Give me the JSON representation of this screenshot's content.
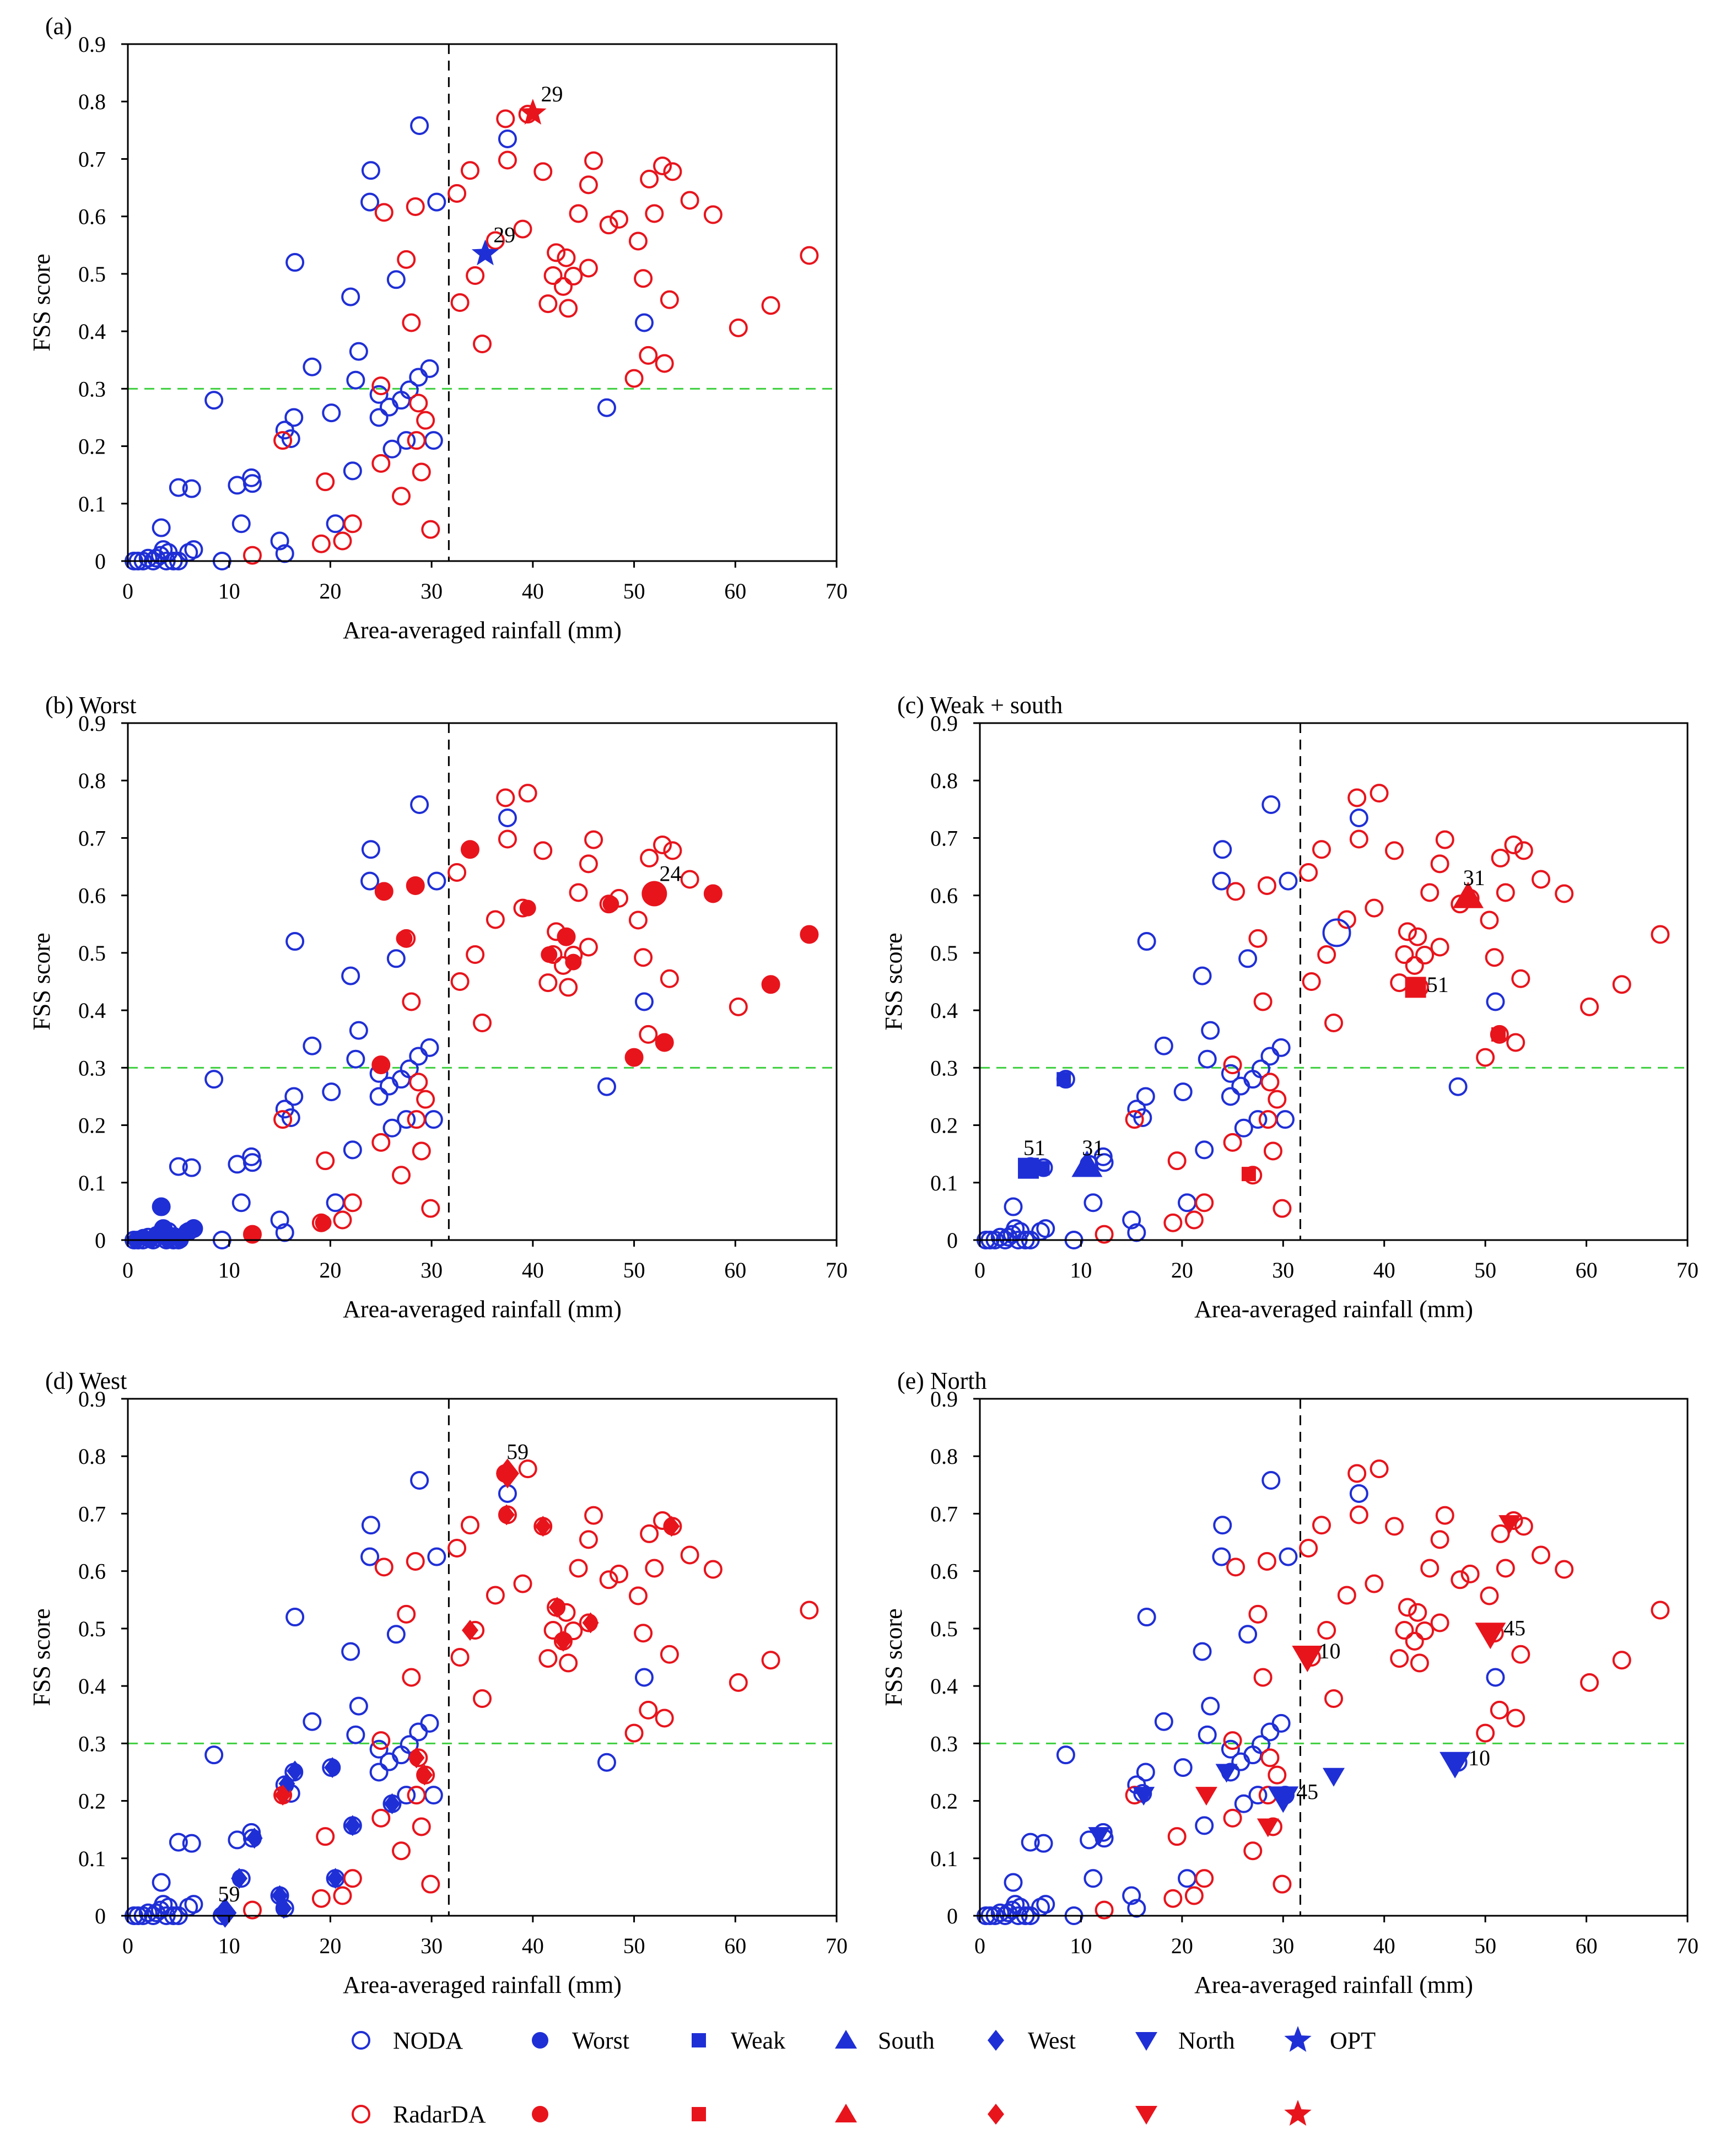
{
  "colors": {
    "noda": "#1f2fd6",
    "radar": "#e8141c",
    "threshold_line": "#3ecf3e",
    "split_line": "#000000"
  },
  "shared_axes": {
    "xlabel": "Area-averaged rainfall (mm)",
    "ylabel": "FSS score",
    "xlim": [
      0,
      70
    ],
    "ylim": [
      0,
      0.9
    ],
    "xticks": [
      "0",
      "10",
      "20",
      "30",
      "40",
      "50",
      "60",
      "70"
    ],
    "yticks": [
      "0",
      "0.1",
      "0.2",
      "0.3",
      "0.4",
      "0.5",
      "0.6",
      "0.7",
      "0.8",
      "0.9"
    ],
    "vertical_line_x": 31.7,
    "horizontal_line_y": 0.3
  },
  "base_points": {
    "noda": [
      [
        0.6,
        0.0
      ],
      [
        1.0,
        0.0
      ],
      [
        1.5,
        0.0
      ],
      [
        2.0,
        0.005
      ],
      [
        2.5,
        0.0
      ],
      [
        2.8,
        0.005
      ],
      [
        3.2,
        0.01
      ],
      [
        3.5,
        0.02
      ],
      [
        3.8,
        0.0
      ],
      [
        4.0,
        0.015
      ],
      [
        4.5,
        0.0
      ],
      [
        5.0,
        0.0
      ],
      [
        6.0,
        0.015
      ],
      [
        6.5,
        0.02
      ],
      [
        3.3,
        0.058
      ],
      [
        5.0,
        0.128
      ],
      [
        6.3,
        0.126
      ],
      [
        9.3,
        0.0
      ],
      [
        8.5,
        0.28
      ],
      [
        10.8,
        0.132
      ],
      [
        11.2,
        0.065
      ],
      [
        12.2,
        0.145
      ],
      [
        12.3,
        0.135
      ],
      [
        15.0,
        0.035
      ],
      [
        15.5,
        0.013
      ],
      [
        15.5,
        0.228
      ],
      [
        16.1,
        0.213
      ],
      [
        16.4,
        0.25
      ],
      [
        16.5,
        0.52
      ],
      [
        18.2,
        0.338
      ],
      [
        20.1,
        0.258
      ],
      [
        20.5,
        0.065
      ],
      [
        22.0,
        0.46
      ],
      [
        22.2,
        0.157
      ],
      [
        22.5,
        0.315
      ],
      [
        22.8,
        0.365
      ],
      [
        23.9,
        0.625
      ],
      [
        24.0,
        0.68
      ],
      [
        24.8,
        0.29
      ],
      [
        24.8,
        0.25
      ],
      [
        25.8,
        0.268
      ],
      [
        26.1,
        0.195
      ],
      [
        26.5,
        0.49
      ],
      [
        27.0,
        0.28
      ],
      [
        27.5,
        0.21
      ],
      [
        27.8,
        0.298
      ],
      [
        28.7,
        0.32
      ],
      [
        28.8,
        0.758
      ],
      [
        29.8,
        0.335
      ],
      [
        30.2,
        0.21
      ],
      [
        30.5,
        0.625
      ],
      [
        37.5,
        0.735
      ],
      [
        47.3,
        0.267
      ],
      [
        51.0,
        0.415
      ]
    ],
    "radar": [
      [
        12.3,
        0.01
      ],
      [
        15.3,
        0.21
      ],
      [
        19.1,
        0.03
      ],
      [
        19.5,
        0.138
      ],
      [
        21.2,
        0.035
      ],
      [
        22.2,
        0.065
      ],
      [
        25.0,
        0.305
      ],
      [
        25.0,
        0.17
      ],
      [
        25.3,
        0.607
      ],
      [
        27.0,
        0.113
      ],
      [
        27.5,
        0.525
      ],
      [
        28.0,
        0.415
      ],
      [
        28.4,
        0.617
      ],
      [
        28.5,
        0.21
      ],
      [
        28.7,
        0.275
      ],
      [
        29.0,
        0.155
      ],
      [
        29.4,
        0.245
      ],
      [
        29.9,
        0.055
      ],
      [
        32.5,
        0.64
      ],
      [
        32.8,
        0.45
      ],
      [
        33.8,
        0.68
      ],
      [
        34.3,
        0.497
      ],
      [
        35.0,
        0.378
      ],
      [
        36.3,
        0.558
      ],
      [
        37.3,
        0.77
      ],
      [
        37.5,
        0.698
      ],
      [
        39.0,
        0.578
      ],
      [
        39.5,
        0.778
      ],
      [
        41.0,
        0.678
      ],
      [
        41.5,
        0.448
      ],
      [
        42.0,
        0.497
      ],
      [
        42.3,
        0.537
      ],
      [
        43.0,
        0.478
      ],
      [
        43.3,
        0.528
      ],
      [
        43.5,
        0.44
      ],
      [
        44.0,
        0.496
      ],
      [
        44.5,
        0.605
      ],
      [
        45.5,
        0.51
      ],
      [
        45.5,
        0.655
      ],
      [
        46.0,
        0.697
      ],
      [
        47.5,
        0.585
      ],
      [
        48.5,
        0.595
      ],
      [
        50.0,
        0.318
      ],
      [
        50.4,
        0.557
      ],
      [
        50.9,
        0.492
      ],
      [
        51.4,
        0.358
      ],
      [
        51.5,
        0.665
      ],
      [
        52.0,
        0.605
      ],
      [
        52.8,
        0.688
      ],
      [
        53.0,
        0.344
      ],
      [
        53.5,
        0.455
      ],
      [
        53.8,
        0.678
      ],
      [
        55.5,
        0.628
      ],
      [
        57.8,
        0.603
      ],
      [
        60.3,
        0.406
      ],
      [
        63.5,
        0.445
      ],
      [
        67.3,
        0.532
      ]
    ]
  },
  "chart_data": [
    {
      "type": "scatter",
      "title": "(a)",
      "xlabel": "Area-averaged rainfall (mm)",
      "ylabel": "FSS score",
      "xlim": [
        0,
        70
      ],
      "ylim": [
        0,
        0.9
      ],
      "series": [
        {
          "name": "NODA",
          "marker": "open-circle",
          "color": "#1f2fd6",
          "source": "base_points.noda"
        },
        {
          "name": "RadarDA",
          "marker": "open-circle",
          "color": "#e8141c",
          "source": "base_points.radar"
        },
        {
          "name": "OPT",
          "marker": "star",
          "color": "#1f2fd6",
          "points": [
            [
              35.3,
              0.535
            ]
          ]
        },
        {
          "name": "OPT",
          "marker": "star",
          "color": "#e8141c",
          "points": [
            [
              40.0,
              0.78
            ]
          ]
        }
      ],
      "annotations": [
        {
          "text": "29",
          "x": 40.8,
          "y": 0.8
        },
        {
          "text": "29",
          "x": 36.1,
          "y": 0.555
        }
      ]
    },
    {
      "type": "scatter",
      "title": "(b) Worst",
      "xlabel": "Area-averaged rainfall (mm)",
      "ylabel": "FSS score",
      "xlim": [
        0,
        70
      ],
      "ylim": [
        0,
        0.9
      ],
      "series": [
        {
          "name": "NODA",
          "marker": "open-circle",
          "color": "#1f2fd6",
          "source": "base_points.noda"
        },
        {
          "name": "RadarDA",
          "marker": "open-circle",
          "color": "#e8141c",
          "source": "base_points.radar"
        },
        {
          "name": "Worst",
          "marker": "filled-circle",
          "color": "#1f2fd6",
          "points": [
            [
              0.8,
              0.0
            ],
            [
              1.5,
              0.005
            ],
            [
              2.2,
              0.0
            ],
            [
              2.8,
              0.01
            ],
            [
              3.3,
              0.058
            ],
            [
              3.5,
              0.02
            ],
            [
              4.0,
              0.0
            ],
            [
              4.6,
              0.008
            ],
            [
              5.2,
              0.0
            ],
            [
              5.8,
              0.015
            ],
            [
              6.5,
              0.022
            ]
          ]
        },
        {
          "name": "Worst",
          "marker": "filled-circle",
          "color": "#e8141c",
          "points": [
            [
              12.3,
              0.01
            ],
            [
              19.3,
              0.03
            ],
            [
              24.9,
              0.305
            ],
            [
              25.3,
              0.607
            ],
            [
              27.3,
              0.525
            ],
            [
              28.4,
              0.617
            ],
            [
              33.8,
              0.68
            ],
            [
              39.5,
              0.578
            ],
            [
              41.6,
              0.497
            ],
            [
              43.4,
              0.528
            ],
            [
              44.0,
              0.484
            ],
            [
              47.7,
              0.585
            ],
            [
              50.0,
              0.318
            ],
            [
              53.0,
              0.344
            ],
            [
              57.8,
              0.603
            ],
            [
              63.5,
              0.445
            ],
            [
              67.3,
              0.532
            ]
          ]
        },
        {
          "name": "Worst",
          "marker": "filled-circle-large",
          "color": "#e8141c",
          "points": [
            [
              52.0,
              0.603
            ]
          ]
        }
      ],
      "annotations": [
        {
          "text": "24",
          "x": 52.5,
          "y": 0.625
        }
      ]
    },
    {
      "type": "scatter",
      "title": "(c) Weak + south",
      "xlabel": "Area-averaged rainfall (mm)",
      "ylabel": "FSS score",
      "xlim": [
        0,
        70
      ],
      "ylim": [
        0,
        0.9
      ],
      "series": [
        {
          "name": "NODA",
          "marker": "open-circle",
          "color": "#1f2fd6",
          "source": "base_points.noda"
        },
        {
          "name": "RadarDA",
          "marker": "open-circle",
          "color": "#e8141c",
          "source": "base_points.radar"
        },
        {
          "name": "NODA",
          "marker": "open-circle-large",
          "color": "#1f2fd6",
          "points": [
            [
              35.3,
              0.535
            ]
          ]
        },
        {
          "name": "Weak",
          "marker": "square",
          "color": "#1f2fd6",
          "points": [
            [
              8.3,
              0.28
            ],
            [
              6.2,
              0.125
            ]
          ]
        },
        {
          "name": "Weak",
          "marker": "square-large",
          "color": "#1f2fd6",
          "points": [
            [
              4.8,
              0.125
            ]
          ]
        },
        {
          "name": "Weak",
          "marker": "square",
          "color": "#e8141c",
          "points": [
            [
              26.6,
              0.115
            ],
            [
              51.3,
              0.358
            ]
          ]
        },
        {
          "name": "Weak",
          "marker": "square-large",
          "color": "#e8141c",
          "points": [
            [
              43.1,
              0.44
            ]
          ]
        },
        {
          "name": "South",
          "marker": "triangle-up-large",
          "color": "#1f2fd6",
          "points": [
            [
              10.6,
              0.13
            ]
          ]
        },
        {
          "name": "South",
          "marker": "triangle-up-large",
          "color": "#e8141c",
          "points": [
            [
              48.3,
              0.598
            ]
          ]
        }
      ],
      "annotations": [
        {
          "text": "51",
          "x": 4.3,
          "y": 0.148
        },
        {
          "text": "31",
          "x": 10.1,
          "y": 0.148
        },
        {
          "text": "51",
          "x": 44.2,
          "y": 0.432
        },
        {
          "text": "31",
          "x": 47.8,
          "y": 0.618
        }
      ]
    },
    {
      "type": "scatter",
      "title": "(d) West",
      "xlabel": "Area-averaged rainfall (mm)",
      "ylabel": "FSS score",
      "xlim": [
        0,
        70
      ],
      "ylim": [
        0,
        0.9
      ],
      "series": [
        {
          "name": "NODA",
          "marker": "open-circle",
          "color": "#1f2fd6",
          "source": "base_points.noda"
        },
        {
          "name": "RadarDA",
          "marker": "open-circle",
          "color": "#e8141c",
          "source": "base_points.radar"
        },
        {
          "name": "West",
          "marker": "diamond",
          "color": "#1f2fd6",
          "points": [
            [
              11.0,
              0.065
            ],
            [
              12.5,
              0.135
            ],
            [
              15.0,
              0.035
            ],
            [
              15.4,
              0.013
            ],
            [
              15.7,
              0.23
            ],
            [
              16.5,
              0.252
            ],
            [
              20.2,
              0.258
            ],
            [
              20.5,
              0.065
            ],
            [
              22.2,
              0.157
            ],
            [
              26.1,
              0.195
            ]
          ]
        },
        {
          "name": "West",
          "marker": "diamond-large",
          "color": "#1f2fd6",
          "points": [
            [
              9.6,
              0.005
            ]
          ]
        },
        {
          "name": "West",
          "marker": "diamond",
          "color": "#e8141c",
          "points": [
            [
              15.3,
              0.21
            ],
            [
              28.5,
              0.275
            ],
            [
              29.3,
              0.245
            ],
            [
              33.8,
              0.497
            ],
            [
              37.4,
              0.698
            ],
            [
              41.0,
              0.678
            ],
            [
              42.4,
              0.537
            ],
            [
              43.0,
              0.478
            ],
            [
              45.7,
              0.51
            ],
            [
              53.7,
              0.678
            ]
          ]
        },
        {
          "name": "West",
          "marker": "diamond-large",
          "color": "#e8141c",
          "points": [
            [
              37.5,
              0.77
            ]
          ]
        }
      ],
      "annotations": [
        {
          "text": "59",
          "x": 37.4,
          "y": 0.795
        },
        {
          "text": "59",
          "x": 8.9,
          "y": 0.025
        }
      ]
    },
    {
      "type": "scatter",
      "title": "(e) North",
      "xlabel": "Area-averaged rainfall (mm)",
      "ylabel": "FSS score",
      "xlim": [
        0,
        70
      ],
      "ylim": [
        0,
        0.9
      ],
      "series": [
        {
          "name": "NODA",
          "marker": "open-circle",
          "color": "#1f2fd6",
          "source": "base_points.noda"
        },
        {
          "name": "RadarDA",
          "marker": "open-circle",
          "color": "#e8141c",
          "source": "base_points.radar"
        },
        {
          "name": "North",
          "marker": "triangle-down",
          "color": "#1f2fd6",
          "points": [
            [
              11.8,
              0.14
            ],
            [
              16.2,
              0.21
            ],
            [
              24.4,
              0.25
            ],
            [
              35.0,
              0.243
            ]
          ]
        },
        {
          "name": "North",
          "marker": "triangle-down-large",
          "color": "#1f2fd6",
          "points": [
            [
              30.0,
              0.205
            ],
            [
              47.0,
              0.265
            ]
          ]
        },
        {
          "name": "North",
          "marker": "triangle-down",
          "color": "#e8141c",
          "points": [
            [
              22.4,
              0.21
            ],
            [
              28.5,
              0.155
            ],
            [
              52.4,
              0.683
            ]
          ]
        },
        {
          "name": "North",
          "marker": "triangle-down-large",
          "color": "#e8141c",
          "points": [
            [
              32.4,
              0.45
            ],
            [
              50.5,
              0.49
            ]
          ]
        }
      ],
      "annotations": [
        {
          "text": "10",
          "x": 33.5,
          "y": 0.448
        },
        {
          "text": "45",
          "x": 51.8,
          "y": 0.488
        },
        {
          "text": "45",
          "x": 31.3,
          "y": 0.203
        },
        {
          "text": "10",
          "x": 48.3,
          "y": 0.262
        }
      ]
    }
  ],
  "legend": {
    "rows": [
      [
        {
          "label": "NODA",
          "marker": "open-circle",
          "color": "#1f2fd6"
        },
        {
          "label": "Worst",
          "marker": "filled-circle",
          "color": "#1f2fd6"
        },
        {
          "label": "Weak",
          "marker": "square",
          "color": "#1f2fd6"
        },
        {
          "label": "South",
          "marker": "triangle-up",
          "color": "#1f2fd6"
        },
        {
          "label": "West",
          "marker": "diamond",
          "color": "#1f2fd6"
        },
        {
          "label": "North",
          "marker": "triangle-down",
          "color": "#1f2fd6"
        },
        {
          "label": "OPT",
          "marker": "star",
          "color": "#1f2fd6"
        }
      ],
      [
        {
          "label": "RadarDA",
          "marker": "open-circle",
          "color": "#e8141c"
        },
        {
          "label": "",
          "marker": "filled-circle",
          "color": "#e8141c"
        },
        {
          "label": "",
          "marker": "square",
          "color": "#e8141c"
        },
        {
          "label": "",
          "marker": "triangle-up",
          "color": "#e8141c"
        },
        {
          "label": "",
          "marker": "diamond",
          "color": "#e8141c"
        },
        {
          "label": "",
          "marker": "triangle-down",
          "color": "#e8141c"
        },
        {
          "label": "",
          "marker": "star",
          "color": "#e8141c"
        }
      ]
    ]
  }
}
